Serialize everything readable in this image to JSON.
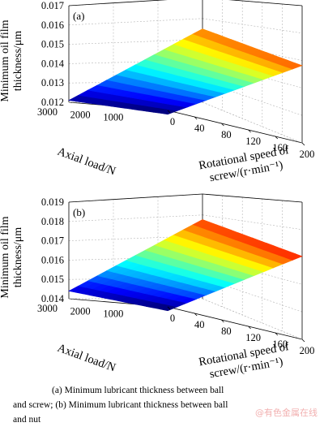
{
  "chart_data": [
    {
      "type": "surface",
      "panel_label": "(a)",
      "xlabel": "Rotational speed of screw/(r·min⁻¹)",
      "xlabel_line1": "Rotational speed of",
      "xlabel_line2": "screw/(r·min⁻¹)",
      "ylabel": "Axial load/N",
      "zlabel_line1": "Minimum oil film",
      "zlabel_line2": "thickness/μm",
      "x_ticks": [
        "0",
        "40",
        "80",
        "120",
        "160",
        "200"
      ],
      "y_ticks": [
        "1000",
        "2000",
        "3000"
      ],
      "z_ticks": [
        "0.012",
        "0.013",
        "0.014",
        "0.015",
        "0.016",
        "0.017"
      ],
      "xlim": [
        0,
        200
      ],
      "ylim": [
        0,
        3000
      ],
      "zlim": [
        0.012,
        0.017
      ],
      "corners": [
        {
          "speed": 0,
          "load": 0,
          "thickness": 0.0118
        },
        {
          "speed": 200,
          "load": 0,
          "thickness": 0.016
        },
        {
          "speed": 200,
          "load": 3000,
          "thickness": 0.0158
        },
        {
          "speed": 0,
          "load": 3000,
          "thickness": 0.0121
        }
      ],
      "grid": true,
      "colormap": "jet"
    },
    {
      "type": "surface",
      "panel_label": "(b)",
      "xlabel": "Rotational speed of screw/(r·min⁻¹)",
      "xlabel_line1": "Rotational speed of",
      "xlabel_line2": "screw/(r·min⁻¹)",
      "ylabel": "Axial load/N",
      "zlabel_line1": "Minimum oil film",
      "zlabel_line2": "thickness/μm",
      "x_ticks": [
        "0",
        "40",
        "80",
        "120",
        "160",
        "200"
      ],
      "y_ticks": [
        "1000",
        "2000",
        "3000"
      ],
      "z_ticks": [
        "0.014",
        "0.015",
        "0.016",
        "0.017",
        "0.018",
        "0.019"
      ],
      "xlim": [
        0,
        200
      ],
      "ylim": [
        0,
        3000
      ],
      "zlim": [
        0.014,
        0.019
      ],
      "corners": [
        {
          "speed": 0,
          "load": 0,
          "thickness": 0.0138
        },
        {
          "speed": 200,
          "load": 0,
          "thickness": 0.0183
        },
        {
          "speed": 200,
          "load": 3000,
          "thickness": 0.0181
        },
        {
          "speed": 0,
          "load": 3000,
          "thickness": 0.0144
        }
      ],
      "grid": true,
      "colormap": "jet"
    }
  ],
  "caption_line1": "(a) Minimum lubricant thickness between ball",
  "caption_line2": "and screw; (b) Minimum lubricant thickness between ball",
  "caption_line3": "and nut",
  "watermark": "@有色金属在线"
}
